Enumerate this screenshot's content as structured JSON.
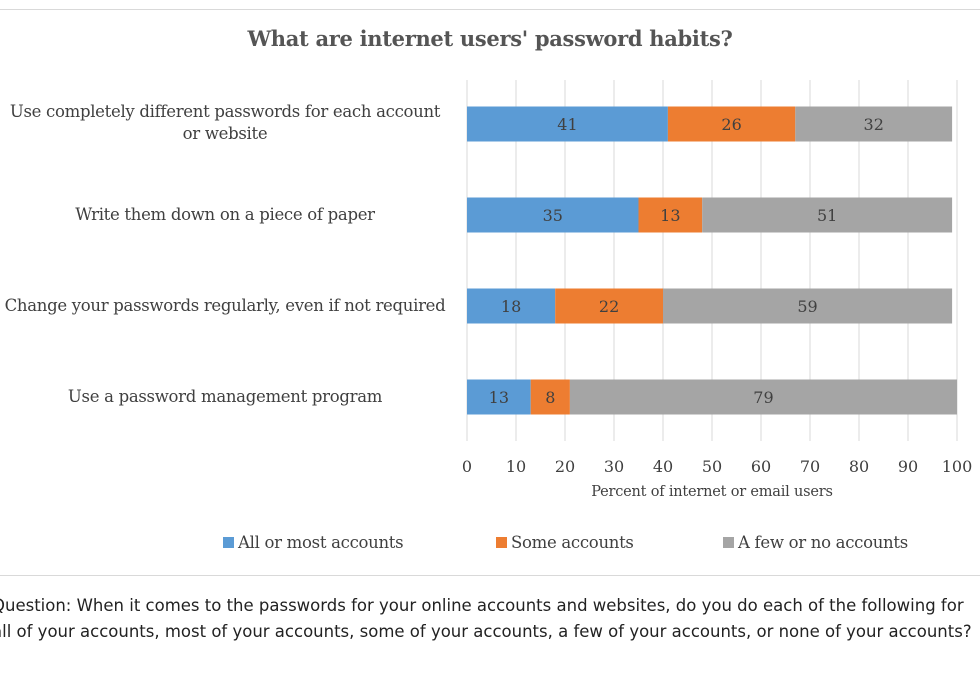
{
  "chart_data": {
    "type": "bar",
    "orientation": "horizontal",
    "stacked": true,
    "title": "What are internet users' password habits?",
    "xlabel": "Percent of internet or email users",
    "ylabel": "",
    "xlim": [
      0,
      100
    ],
    "x_ticks": [
      "0",
      "10",
      "20",
      "30",
      "40",
      "50",
      "60",
      "70",
      "80",
      "90",
      "100"
    ],
    "grid": true,
    "legend_position": "bottom",
    "categories": [
      "Use completely different passwords for each account or website",
      "Write them down on a piece of paper",
      "Change your passwords regularly, even if not required",
      "Use a password management program"
    ],
    "series": [
      {
        "name": "All or most accounts",
        "color": "#5b9bd5",
        "values": [
          41,
          35,
          18,
          13
        ]
      },
      {
        "name": "Some accounts",
        "color": "#ed7d31",
        "values": [
          26,
          13,
          22,
          8
        ]
      },
      {
        "name": "A few or no accounts",
        "color": "#a5a5a5",
        "values": [
          32,
          51,
          59,
          79
        ]
      }
    ]
  },
  "footnote": "Question: When it comes to the passwords for your online accounts and websites, do you do each of the following for all of your accounts, most of your accounts, some of your accounts, a few of your accounts, or none of your accounts?"
}
